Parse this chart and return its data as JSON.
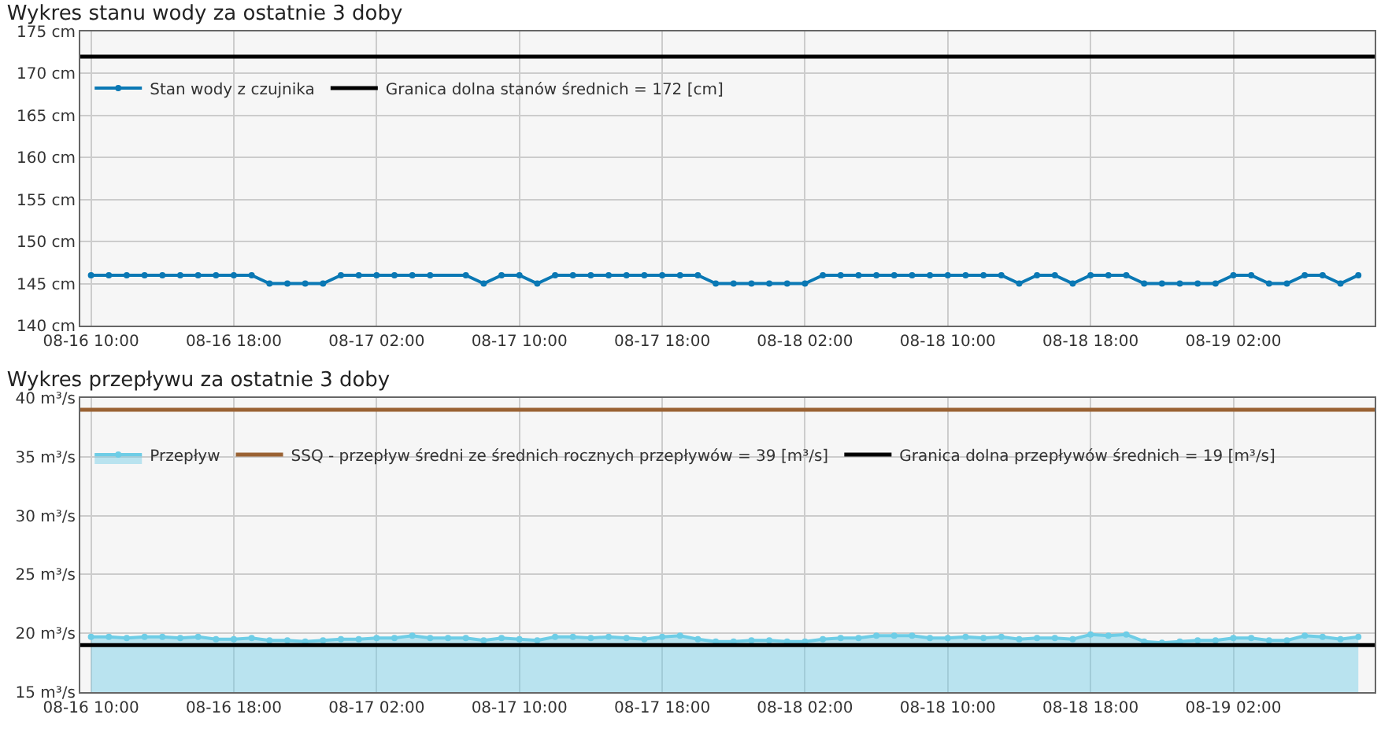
{
  "chart_data": [
    {
      "type": "line",
      "title": "Wykres stanu wody za ostatnie 3 doby",
      "grid": true,
      "legend": "top left",
      "marker": "circle",
      "line_style": "solid",
      "x": [
        "--08-16T10:00",
        "--08-16T11:00",
        "--08-16T12:00",
        "--08-16T13:00",
        "--08-16T14:00",
        "--08-16T15:00",
        "--08-16T16:00",
        "--08-16T17:00",
        "--08-16T18:00",
        "--08-16T19:00",
        "--08-16T20:00",
        "--08-16T21:00",
        "--08-16T22:00",
        "--08-16T23:00",
        "--08-17T00:00",
        "--08-17T01:00",
        "--08-17T02:00",
        "--08-17T03:00",
        "--08-17T04:00",
        "--08-17T05:00",
        "--08-17T07:00",
        "--08-17T08:00",
        "--08-17T09:00",
        "--08-17T10:00",
        "--08-17T11:00",
        "--08-17T12:00",
        "--08-17T13:00",
        "--08-17T14:00",
        "--08-17T15:00",
        "--08-17T16:00",
        "--08-17T17:00",
        "--08-17T18:00",
        "--08-17T19:00",
        "--08-17T20:00",
        "--08-17T21:00",
        "--08-17T22:00",
        "--08-17T23:00",
        "--08-18T00:00",
        "--08-18T01:00",
        "--08-18T02:00",
        "--08-18T03:00",
        "--08-18T04:00",
        "--08-18T05:00",
        "--08-18T06:00",
        "--08-18T07:00",
        "--08-18T08:00",
        "--08-18T09:00",
        "--08-18T10:00",
        "--08-18T11:00",
        "--08-18T12:00",
        "--08-18T13:00",
        "--08-18T14:00",
        "--08-18T15:00",
        "--08-18T16:00",
        "--08-18T17:00",
        "--08-18T18:00",
        "--08-18T19:00",
        "--08-18T20:00",
        "--08-18T21:00",
        "--08-18T22:00",
        "--08-18T23:00",
        "--08-19T00:00",
        "--08-19T01:00",
        "--08-19T02:00",
        "--08-19T03:00",
        "--08-19T04:00",
        "--08-19T05:00",
        "--08-19T06:00",
        "--08-19T07:00",
        "--08-19T08:00",
        "--08-19T09:00"
      ],
      "series": [
        {
          "name": "Stan wody z czujnika",
          "color": "#0a78b4",
          "values": [
            146,
            146,
            146,
            146,
            146,
            146,
            146,
            146,
            146,
            146,
            145,
            145,
            145,
            145,
            146,
            146,
            146,
            146,
            146,
            146,
            146,
            145,
            146,
            146,
            145,
            146,
            146,
            146,
            146,
            146,
            146,
            146,
            146,
            146,
            145,
            145,
            145,
            145,
            145,
            145,
            146,
            146,
            146,
            146,
            146,
            146,
            146,
            146,
            146,
            146,
            146,
            145,
            146,
            146,
            145,
            146,
            146,
            146,
            145,
            145,
            145,
            145,
            145,
            146,
            146,
            145,
            145,
            146,
            146,
            145,
            146
          ]
        }
      ],
      "ref_lines": [
        {
          "axis": "y",
          "value": 172,
          "label": "Granica dolna stanów średnich = 172 [cm]",
          "color": "#000000"
        }
      ],
      "xlim": [
        "--08-16T09:24",
        "--08-19T09:55"
      ],
      "xticks": [
        {
          "value": "--08-16T10:00",
          "label": "08-16 10:00"
        },
        {
          "value": "--08-16T18:00",
          "label": "08-16 18:00"
        },
        {
          "value": "--08-17T02:00",
          "label": "08-17 02:00"
        },
        {
          "value": "--08-17T10:00",
          "label": "08-17 10:00"
        },
        {
          "value": "--08-17T18:00",
          "label": "08-17 18:00"
        },
        {
          "value": "--08-18T02:00",
          "label": "08-18 02:00"
        },
        {
          "value": "--08-18T10:00",
          "label": "08-18 10:00"
        },
        {
          "value": "--08-18T18:00",
          "label": "08-18 18:00"
        },
        {
          "value": "--08-19T02:00",
          "label": "08-19 02:00"
        }
      ],
      "ylim": [
        140,
        175
      ],
      "yticks": [
        {
          "value": 140,
          "label": "140 cm"
        },
        {
          "value": 145,
          "label": "145 cm"
        },
        {
          "value": 150,
          "label": "150 cm"
        },
        {
          "value": 155,
          "label": "155 cm"
        },
        {
          "value": 160,
          "label": "160 cm"
        },
        {
          "value": 165,
          "label": "165 cm"
        },
        {
          "value": 170,
          "label": "170 cm"
        },
        {
          "value": 175,
          "label": "175 cm"
        }
      ]
    },
    {
      "type": "area",
      "title": "Wykres przepływu za ostatnie 3 doby",
      "grid": true,
      "legend": "top left",
      "marker": "circle",
      "line_style": "solid",
      "x": [
        "--08-16T10:00",
        "--08-16T11:00",
        "--08-16T12:00",
        "--08-16T13:00",
        "--08-16T14:00",
        "--08-16T15:00",
        "--08-16T16:00",
        "--08-16T17:00",
        "--08-16T18:00",
        "--08-16T19:00",
        "--08-16T20:00",
        "--08-16T21:00",
        "--08-16T22:00",
        "--08-16T23:00",
        "--08-17T00:00",
        "--08-17T01:00",
        "--08-17T02:00",
        "--08-17T03:00",
        "--08-17T04:00",
        "--08-17T05:00",
        "--08-17T06:00",
        "--08-17T07:00",
        "--08-17T08:00",
        "--08-17T09:00",
        "--08-17T10:00",
        "--08-17T11:00",
        "--08-17T12:00",
        "--08-17T13:00",
        "--08-17T14:00",
        "--08-17T15:00",
        "--08-17T16:00",
        "--08-17T17:00",
        "--08-17T18:00",
        "--08-17T19:00",
        "--08-17T20:00",
        "--08-17T21:00",
        "--08-17T22:00",
        "--08-17T23:00",
        "--08-18T00:00",
        "--08-18T01:00",
        "--08-18T02:00",
        "--08-18T03:00",
        "--08-18T04:00",
        "--08-18T05:00",
        "--08-18T06:00",
        "--08-18T07:00",
        "--08-18T08:00",
        "--08-18T09:00",
        "--08-18T10:00",
        "--08-18T11:00",
        "--08-18T12:00",
        "--08-18T13:00",
        "--08-18T14:00",
        "--08-18T15:00",
        "--08-18T16:00",
        "--08-18T17:00",
        "--08-18T18:00",
        "--08-18T19:00",
        "--08-18T20:00",
        "--08-18T21:00",
        "--08-18T22:00",
        "--08-18T23:00",
        "--08-19T00:00",
        "--08-19T01:00",
        "--08-19T02:00",
        "--08-19T03:00",
        "--08-19T04:00",
        "--08-19T05:00",
        "--08-19T06:00",
        "--08-19T07:00",
        "--08-19T08:00",
        "--08-19T09:00"
      ],
      "series": [
        {
          "name": "Przepływ",
          "color": "#6ecde6",
          "values": [
            19.7,
            19.7,
            19.6,
            19.7,
            19.7,
            19.6,
            19.7,
            19.5,
            19.5,
            19.6,
            19.4,
            19.4,
            19.3,
            19.4,
            19.5,
            19.5,
            19.6,
            19.6,
            19.8,
            19.6,
            19.6,
            19.6,
            19.4,
            19.6,
            19.5,
            19.4,
            19.7,
            19.7,
            19.6,
            19.7,
            19.6,
            19.5,
            19.7,
            19.8,
            19.5,
            19.3,
            19.3,
            19.4,
            19.4,
            19.3,
            19.3,
            19.5,
            19.6,
            19.6,
            19.8,
            19.8,
            19.8,
            19.6,
            19.6,
            19.7,
            19.6,
            19.7,
            19.5,
            19.6,
            19.6,
            19.5,
            19.9,
            19.8,
            19.9,
            19.3,
            19.2,
            19.3,
            19.4,
            19.4,
            19.6,
            19.6,
            19.4,
            19.4,
            19.8,
            19.7,
            19.5,
            19.7
          ]
        }
      ],
      "ref_lines": [
        {
          "axis": "y",
          "value": 39,
          "label": "SSQ - przepływ średni ze średnich rocznych przepływów = 39 [m³/s]",
          "color": "#9a6233"
        },
        {
          "axis": "y",
          "value": 19,
          "label": "Granica dolna przepływów średnich = 19 [m³/s]",
          "color": "#000000"
        }
      ],
      "xlim": [
        "--08-16T09:24",
        "--08-19T09:55"
      ],
      "xticks": [
        {
          "value": "--08-16T10:00",
          "label": "08-16 10:00"
        },
        {
          "value": "--08-16T18:00",
          "label": "08-16 18:00"
        },
        {
          "value": "--08-17T02:00",
          "label": "08-17 02:00"
        },
        {
          "value": "--08-17T10:00",
          "label": "08-17 10:00"
        },
        {
          "value": "--08-17T18:00",
          "label": "08-17 18:00"
        },
        {
          "value": "--08-18T02:00",
          "label": "08-18 02:00"
        },
        {
          "value": "--08-18T10:00",
          "label": "08-18 10:00"
        },
        {
          "value": "--08-18T18:00",
          "label": "08-18 18:00"
        },
        {
          "value": "--08-19T02:00",
          "label": "08-19 02:00"
        }
      ],
      "ylim": [
        15,
        40
      ],
      "yticks": [
        {
          "value": 15,
          "label": "15 m³/s"
        },
        {
          "value": 20,
          "label": "20 m³/s"
        },
        {
          "value": 25,
          "label": "25 m³/s"
        },
        {
          "value": 30,
          "label": "30 m³/s"
        },
        {
          "value": 35,
          "label": "35 m³/s"
        },
        {
          "value": 40,
          "label": "40 m³/s"
        }
      ]
    }
  ]
}
